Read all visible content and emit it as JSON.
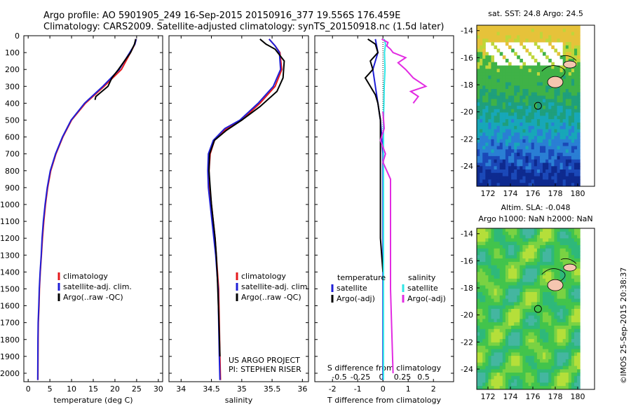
{
  "header": {
    "line1": "Argo profile: AO 5901905_249 16-Sep-2015 20150916_377 19.556S 176.459E",
    "line2": "Climatology: CARS2009. Satellite-adjusted climatology: synTS_20150918.nc (1.5d later)"
  },
  "colors": {
    "climatology": "#e41a1c",
    "satellite": "#1f1fd6",
    "argo": "#000000",
    "sal_satellite": "#2ee6e6",
    "sal_argo": "#e22be2",
    "land": "#f5c6b0"
  },
  "credits": {
    "project": "US ARGO PROJECT",
    "pi": "PI: STEPHEN RISER",
    "imos": "©IMOS 25-Sep-2015 20:38:37"
  },
  "chart_data": [
    {
      "type": "line",
      "panel": "temperature",
      "xlabel": "temperature (deg C)",
      "ylabel": "",
      "xlim": [
        -1,
        31
      ],
      "ylim": [
        2050,
        0
      ],
      "xticks": [
        "0",
        "5",
        "10",
        "15",
        "20",
        "25",
        "30"
      ],
      "yticks": [
        "0",
        "100",
        "200",
        "300",
        "400",
        "500",
        "600",
        "700",
        "800",
        "900",
        "1000",
        "1100",
        "1200",
        "1300",
        "1400",
        "1500",
        "1600",
        "1700",
        "1800",
        "1900",
        "2000"
      ],
      "legend": [
        "climatology",
        "satellite-adj. clim.",
        "Argo(..raw -QC)"
      ],
      "series": [
        {
          "name": "climatology",
          "x": [
            24.9,
            24.6,
            23.6,
            21.5,
            17.5,
            13.2,
            10.0,
            8.0,
            6.4,
            5.2,
            4.5,
            4.0,
            3.6,
            3.3,
            3.05,
            2.8,
            2.6,
            2.5,
            2.35,
            2.3,
            2.25
          ],
          "y": [
            20,
            50,
            100,
            200,
            300,
            400,
            500,
            600,
            700,
            800,
            900,
            1000,
            1100,
            1200,
            1300,
            1400,
            1500,
            1600,
            1700,
            1800,
            2040
          ]
        },
        {
          "name": "satellite-adj. clim.",
          "x": [
            24.9,
            24.6,
            23.4,
            21.0,
            17.2,
            13.0,
            9.9,
            7.9,
            6.3,
            5.1,
            4.4,
            3.9,
            3.5,
            3.2,
            3.0,
            2.75,
            2.55,
            2.45,
            2.3,
            2.25,
            2.2
          ],
          "y": [
            20,
            50,
            100,
            200,
            300,
            400,
            500,
            600,
            700,
            800,
            900,
            1000,
            1100,
            1200,
            1300,
            1400,
            1500,
            1600,
            1700,
            1800,
            2040
          ]
        },
        {
          "name": "Argo(..raw -QC)",
          "x": [
            24.8,
            24.5,
            23.6,
            22.2,
            20.8,
            19.3,
            18.4,
            17.0,
            15.6,
            15.4
          ],
          "y": [
            20,
            50,
            100,
            150,
            200,
            250,
            300,
            330,
            360,
            380
          ]
        }
      ]
    },
    {
      "type": "line",
      "panel": "salinity",
      "xlabel": "salinity",
      "xlim": [
        33.8,
        36.1
      ],
      "ylim": [
        2050,
        0
      ],
      "xticks": [
        "34",
        "34.5",
        "35",
        "35.5",
        "36"
      ],
      "legend": [
        "climatology",
        "satellite-adj. clim.",
        "Argo(..raw -QC)"
      ],
      "series": [
        {
          "name": "climatology",
          "x": [
            35.45,
            35.55,
            35.63,
            35.66,
            35.55,
            35.3,
            35.0,
            34.75,
            34.55,
            34.48,
            34.46,
            34.47,
            34.5,
            34.53,
            34.56,
            34.58,
            34.6,
            34.62,
            34.63,
            34.64,
            34.65
          ],
          "y": [
            20,
            60,
            100,
            200,
            300,
            400,
            500,
            550,
            620,
            700,
            800,
            900,
            1000,
            1100,
            1200,
            1300,
            1400,
            1500,
            1700,
            1900,
            2040
          ]
        },
        {
          "name": "satellite-adj. clim.",
          "x": [
            35.45,
            35.55,
            35.62,
            35.64,
            35.52,
            35.27,
            34.97,
            34.72,
            34.53,
            34.45,
            34.44,
            34.45,
            34.48,
            34.51,
            34.54,
            34.57,
            34.59,
            34.61,
            34.62,
            34.63,
            34.64
          ],
          "y": [
            20,
            60,
            100,
            200,
            300,
            400,
            500,
            550,
            620,
            700,
            800,
            900,
            1000,
            1100,
            1200,
            1300,
            1400,
            1500,
            1700,
            1900,
            2040
          ]
        },
        {
          "name": "Argo(..raw -QC)",
          "x": [
            35.3,
            35.4,
            35.55,
            35.7,
            35.68,
            35.58,
            35.3,
            35.0,
            34.75,
            34.55,
            34.47,
            34.46,
            34.48,
            34.5,
            34.53,
            34.56,
            34.58,
            34.6,
            34.62,
            34.64
          ],
          "y": [
            20,
            50,
            80,
            150,
            250,
            330,
            420,
            500,
            560,
            620,
            700,
            800,
            900,
            1000,
            1100,
            1200,
            1300,
            1450,
            1650,
            1900
          ]
        }
      ]
    },
    {
      "type": "line",
      "panel": "difference",
      "xlabel": "T difference from climatology",
      "xlabel_top": "S difference from climatology",
      "xlim": [
        -2.7,
        2.8
      ],
      "ylim": [
        2050,
        0
      ],
      "xticks": [
        "-2",
        "-1",
        "0",
        "1",
        "2"
      ],
      "xticks_top": [
        "-0.5",
        "-0.25",
        "0",
        "0.25",
        "0.5"
      ],
      "legend_headers": [
        "temperature",
        "salinity"
      ],
      "legend": [
        "satellite",
        "Argo(-adj)",
        "satellite",
        "Argo(-adj)"
      ],
      "series": [
        {
          "name": "temperature satellite",
          "x": [
            -0.3,
            -0.2,
            -0.4,
            -0.3,
            -0.2,
            -0.1,
            0.0,
            0.0,
            0.0,
            0.0
          ],
          "y": [
            20,
            100,
            200,
            300,
            400,
            500,
            700,
            1000,
            1500,
            2040
          ]
        },
        {
          "name": "temperature Argo(-adj)",
          "x": [
            -0.6,
            -0.3,
            -0.2,
            -0.5,
            -0.4,
            -0.7,
            -0.5,
            -0.3,
            -0.2,
            -0.1,
            -0.1,
            -0.1,
            0.0
          ],
          "y": [
            20,
            50,
            100,
            150,
            200,
            250,
            300,
            350,
            400,
            500,
            700,
            1200,
            1400
          ]
        },
        {
          "name": "salinity satellite",
          "x": [
            0.05,
            0.1,
            0.06,
            0.08,
            0.05,
            0.04,
            0.02,
            0.02,
            0.02,
            0.02,
            0.02
          ],
          "y": [
            20,
            50,
            100,
            200,
            300,
            400,
            500,
            700,
            1000,
            1500,
            2040
          ]
        },
        {
          "name": "salinity Argo(-adj)",
          "x": [
            -0.05,
            0.2,
            0.15,
            0.3,
            0.4,
            0.9,
            0.6,
            0.9,
            1.2,
            1.7,
            1.1,
            1.4,
            1.2
          ],
          "y": [
            20,
            40,
            60,
            80,
            100,
            130,
            160,
            200,
            250,
            300,
            330,
            360,
            400
          ]
        },
        {
          "name": "salinity Argo(-adj) deep",
          "x": [
            0.0,
            0.05,
            -0.1,
            0.1,
            0.0,
            0.3,
            0.3,
            0.3,
            0.4
          ],
          "y": [
            450,
            550,
            620,
            700,
            750,
            850,
            1100,
            1500,
            2000
          ]
        }
      ]
    },
    {
      "type": "heatmap",
      "panel": "sst-map",
      "title": "sat. SST: 24.8 Argo: 24.5",
      "xticks": [
        "172",
        "174",
        "176",
        "178",
        "180"
      ],
      "yticks": [
        "-14",
        "-16",
        "-18",
        "-20",
        "-22",
        "-24"
      ],
      "xlim": [
        171,
        181.5
      ],
      "ylim": [
        -25.5,
        -13.6
      ],
      "argo_position": {
        "lon": 176.459,
        "lat": -19.556
      }
    },
    {
      "type": "heatmap",
      "panel": "sla-map",
      "title": "Altim. SLA: -0.048",
      "subtitle": "Argo h1000: NaN h2000: NaN",
      "xticks": [
        "172",
        "174",
        "176",
        "178",
        "180"
      ],
      "yticks": [
        "-14",
        "-16",
        "-18",
        "-20",
        "-22",
        "-24"
      ],
      "xlim": [
        171,
        181.5
      ],
      "ylim": [
        -25.5,
        -13.6
      ],
      "argo_position": {
        "lon": 176.459,
        "lat": -19.556
      }
    }
  ]
}
